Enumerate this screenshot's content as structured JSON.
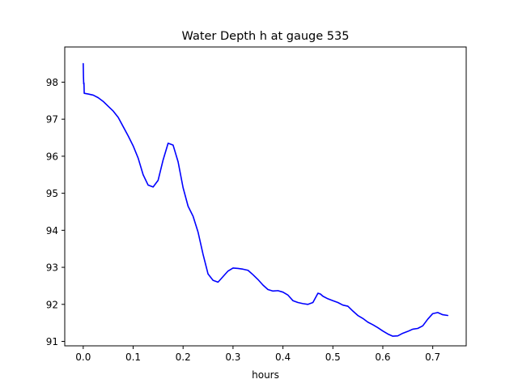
{
  "chart_data": {
    "type": "line",
    "title": "Water Depth h at gauge 535",
    "xlabel": "hours",
    "ylabel": "",
    "xlim": [
      -0.037,
      0.767
    ],
    "ylim": [
      90.88,
      98.95
    ],
    "grid": false,
    "legend": "none",
    "x_ticks": [
      0.0,
      0.1,
      0.2,
      0.3,
      0.4,
      0.5,
      0.6,
      0.7
    ],
    "x_tick_labels": [
      "0.0",
      "0.1",
      "0.2",
      "0.3",
      "0.4",
      "0.5",
      "0.6",
      "0.7"
    ],
    "y_ticks": [
      91,
      92,
      93,
      94,
      95,
      96,
      97,
      98
    ],
    "y_tick_labels": [
      "91",
      "92",
      "93",
      "94",
      "95",
      "96",
      "97",
      "98"
    ],
    "series": [
      {
        "color": "#0000ff",
        "points": [
          [
            0.0,
            98.5
          ],
          [
            0.0005,
            98.15
          ],
          [
            0.001,
            97.95
          ],
          [
            0.0015,
            97.98
          ],
          [
            0.002,
            97.7
          ],
          [
            0.01,
            97.68
          ],
          [
            0.02,
            97.65
          ],
          [
            0.03,
            97.58
          ],
          [
            0.04,
            97.48
          ],
          [
            0.05,
            97.35
          ],
          [
            0.06,
            97.22
          ],
          [
            0.07,
            97.05
          ],
          [
            0.08,
            96.8
          ],
          [
            0.09,
            96.55
          ],
          [
            0.1,
            96.28
          ],
          [
            0.11,
            95.95
          ],
          [
            0.12,
            95.5
          ],
          [
            0.13,
            95.22
          ],
          [
            0.14,
            95.17
          ],
          [
            0.15,
            95.35
          ],
          [
            0.16,
            95.9
          ],
          [
            0.17,
            96.35
          ],
          [
            0.18,
            96.3
          ],
          [
            0.19,
            95.85
          ],
          [
            0.2,
            95.15
          ],
          [
            0.21,
            94.65
          ],
          [
            0.22,
            94.38
          ],
          [
            0.23,
            93.95
          ],
          [
            0.24,
            93.35
          ],
          [
            0.25,
            92.82
          ],
          [
            0.26,
            92.65
          ],
          [
            0.27,
            92.6
          ],
          [
            0.28,
            92.75
          ],
          [
            0.29,
            92.9
          ],
          [
            0.3,
            92.98
          ],
          [
            0.31,
            92.97
          ],
          [
            0.32,
            92.95
          ],
          [
            0.33,
            92.92
          ],
          [
            0.34,
            92.8
          ],
          [
            0.35,
            92.67
          ],
          [
            0.36,
            92.52
          ],
          [
            0.37,
            92.4
          ],
          [
            0.38,
            92.36
          ],
          [
            0.39,
            92.37
          ],
          [
            0.4,
            92.33
          ],
          [
            0.41,
            92.25
          ],
          [
            0.42,
            92.1
          ],
          [
            0.43,
            92.05
          ],
          [
            0.44,
            92.02
          ],
          [
            0.45,
            92.0
          ],
          [
            0.46,
            92.05
          ],
          [
            0.47,
            92.3
          ],
          [
            0.475,
            92.28
          ],
          [
            0.48,
            92.22
          ],
          [
            0.49,
            92.15
          ],
          [
            0.5,
            92.1
          ],
          [
            0.51,
            92.05
          ],
          [
            0.52,
            91.98
          ],
          [
            0.53,
            91.95
          ],
          [
            0.54,
            91.82
          ],
          [
            0.55,
            91.7
          ],
          [
            0.56,
            91.62
          ],
          [
            0.57,
            91.52
          ],
          [
            0.58,
            91.45
          ],
          [
            0.59,
            91.37
          ],
          [
            0.6,
            91.28
          ],
          [
            0.61,
            91.2
          ],
          [
            0.62,
            91.14
          ],
          [
            0.63,
            91.15
          ],
          [
            0.64,
            91.22
          ],
          [
            0.65,
            91.27
          ],
          [
            0.66,
            91.33
          ],
          [
            0.67,
            91.35
          ],
          [
            0.68,
            91.42
          ],
          [
            0.69,
            91.6
          ],
          [
            0.7,
            91.75
          ],
          [
            0.71,
            91.78
          ],
          [
            0.72,
            91.72
          ],
          [
            0.73,
            91.7
          ]
        ]
      }
    ]
  }
}
